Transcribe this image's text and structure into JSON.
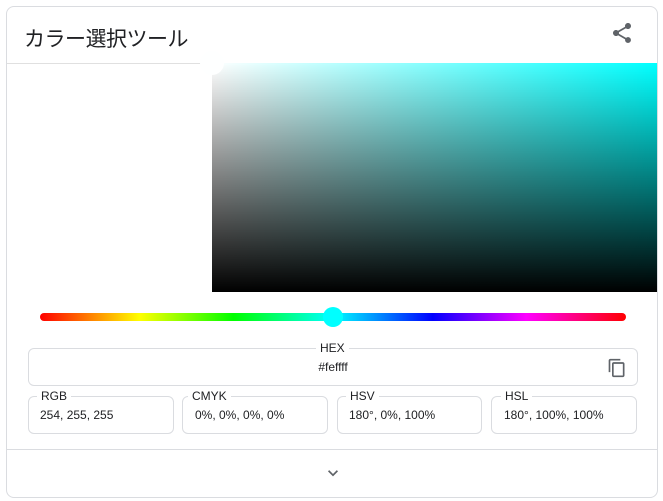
{
  "title": "カラー選択ツール",
  "selected_color": "#feffff",
  "hue_color": "#00ffff",
  "hue_degrees": 180,
  "saturation_percent": 0,
  "value_percent": 100,
  "hex": {
    "label": "HEX",
    "value": "#feffff"
  },
  "formats": [
    {
      "label": "RGB",
      "value": "254, 255, 255"
    },
    {
      "label": "CMYK",
      "value": "0%, 0%, 0%, 0%"
    },
    {
      "label": "HSV",
      "value": "180°, 0%, 100%"
    },
    {
      "label": "HSL",
      "value": "180°, 100%, 100%"
    }
  ],
  "icons": [
    "share-icon",
    "copy-icon",
    "chevron-down-icon"
  ]
}
